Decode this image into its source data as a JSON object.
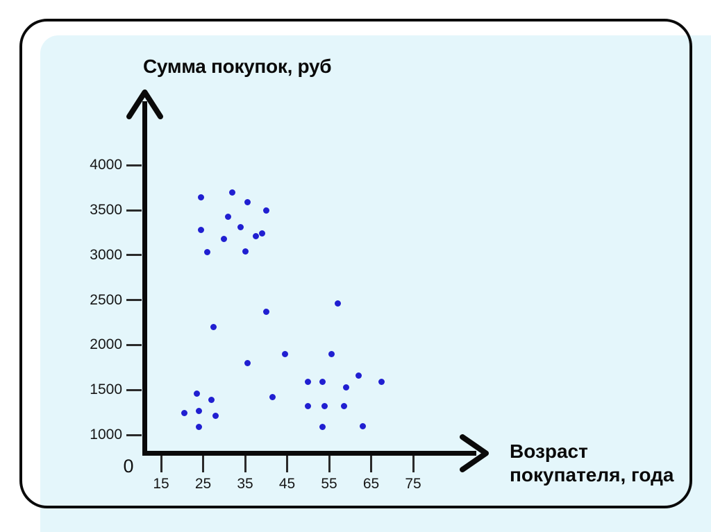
{
  "colors": {
    "panel_bg": "#e4f6fb",
    "axis": "#0a0a0a",
    "tick": "#2a2a2a",
    "tick_text": "#161616",
    "point": "#201fd1",
    "page_bg": "#ffffff",
    "frame_border": "#0a0a0a"
  },
  "chart_data": {
    "type": "scatter",
    "title": "Сумма покупок, руб",
    "ylabel": "Сумма покупок, руб",
    "xlabel": "Возраст покупателя, года",
    "xlabel_line1": "Возраст",
    "xlabel_line2": "покупателя, года",
    "origin_label": "0",
    "x_ticks": [
      15,
      25,
      35,
      45,
      55,
      65,
      75
    ],
    "y_ticks": [
      1000,
      1500,
      2000,
      2500,
      3000,
      3500,
      4000
    ],
    "xlim": [
      10,
      82
    ],
    "ylim": [
      780,
      4450
    ],
    "grid": false,
    "legend": false,
    "points": [
      [
        24.5,
        3640
      ],
      [
        32,
        3700
      ],
      [
        35.5,
        3590
      ],
      [
        40,
        3500
      ],
      [
        31,
        3430
      ],
      [
        34,
        3310
      ],
      [
        24.5,
        3280
      ],
      [
        39,
        3240
      ],
      [
        37.5,
        3210
      ],
      [
        30,
        3180
      ],
      [
        35,
        3040
      ],
      [
        26,
        3030
      ],
      [
        57,
        2460
      ],
      [
        40,
        2370
      ],
      [
        27.5,
        2200
      ],
      [
        44.5,
        1900
      ],
      [
        55.5,
        1900
      ],
      [
        35.5,
        1800
      ],
      [
        62,
        1660
      ],
      [
        50,
        1590
      ],
      [
        53.5,
        1590
      ],
      [
        67.5,
        1590
      ],
      [
        59,
        1530
      ],
      [
        23.5,
        1460
      ],
      [
        41.5,
        1420
      ],
      [
        27,
        1390
      ],
      [
        50,
        1320
      ],
      [
        54,
        1320
      ],
      [
        58.5,
        1320
      ],
      [
        24,
        1270
      ],
      [
        20.5,
        1240
      ],
      [
        28,
        1210
      ],
      [
        24,
        1090
      ],
      [
        53.5,
        1090
      ],
      [
        63,
        1100
      ]
    ]
  }
}
